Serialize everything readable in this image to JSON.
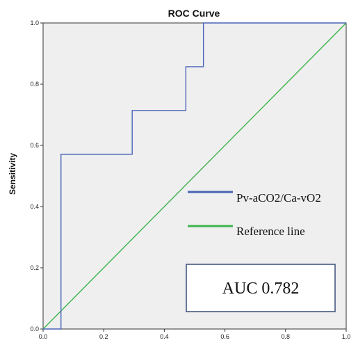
{
  "chart_data": {
    "type": "line",
    "title": "ROC Curve",
    "xlabel": "",
    "ylabel": "Sensitivity",
    "xlim": [
      0.0,
      1.0
    ],
    "ylim": [
      0.0,
      1.0
    ],
    "x_ticks": [
      0.0,
      0.2,
      0.4,
      0.6,
      0.8,
      1.0
    ],
    "y_ticks": [
      0.0,
      0.2,
      0.4,
      0.6,
      0.8,
      1.0
    ],
    "x_tick_labels": [
      "0.0",
      "0.2",
      "0.4",
      "0.6",
      "0.8",
      "1.0"
    ],
    "y_tick_labels": [
      "0.0",
      "0.2",
      "0.4",
      "0.6",
      "0.8",
      "1.0"
    ],
    "grid": false,
    "background": "#efefef",
    "legend_position": "right",
    "series": [
      {
        "name": "Pv-aCO2/Ca-vO2",
        "color": "#4a64b8",
        "x": [
          0.0,
          0.059,
          0.059,
          0.294,
          0.294,
          0.471,
          0.471,
          0.529,
          0.529,
          1.0
        ],
        "y": [
          0.0,
          0.0,
          0.571,
          0.571,
          0.714,
          0.714,
          0.857,
          0.857,
          1.0,
          1.0
        ]
      },
      {
        "name": "Reference line",
        "color": "#3cb44b",
        "x": [
          0.0,
          1.0
        ],
        "y": [
          0.0,
          1.0
        ]
      }
    ],
    "annotation": "AUC 0.782"
  }
}
